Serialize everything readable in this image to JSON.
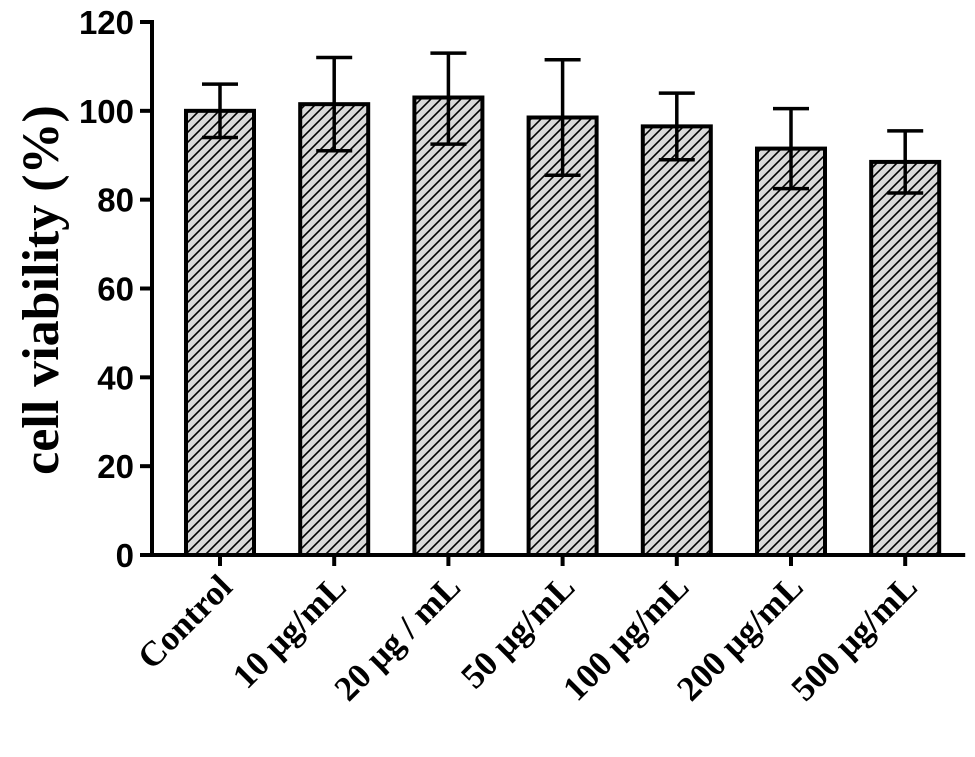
{
  "chart_data": {
    "type": "bar",
    "title": "",
    "xlabel": "",
    "ylabel": "cell viability (%)",
    "ylim": [
      0,
      120
    ],
    "yticks": [
      "0",
      "20",
      "40",
      "60",
      "80",
      "100",
      "120"
    ],
    "categories": [
      "Control",
      "10 μg/mL",
      "20 μg / mL",
      "50 μg/mL",
      "100 μg/mL",
      "200 μg/mL",
      "500  μg/mL"
    ],
    "values": [
      100,
      101.5,
      103,
      98.5,
      96.5,
      91.5,
      88.5
    ],
    "error_upper": [
      106,
      112,
      113,
      111.5,
      104,
      100.5,
      95.5
    ],
    "error_lower": [
      94,
      91,
      92.5,
      85.5,
      89,
      82.5,
      81.5
    ],
    "bar_fill_pattern": "diagonal-hatch",
    "bar_fill_color": "#d9d9d9",
    "bar_stroke_color": "#000000",
    "grid": false,
    "legend": "none"
  }
}
